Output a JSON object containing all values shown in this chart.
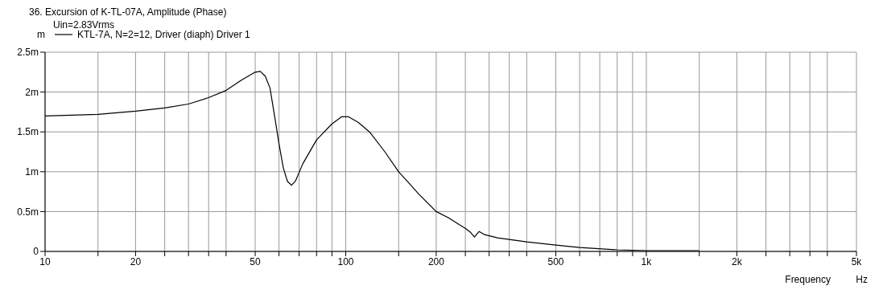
{
  "chart_data": {
    "type": "line",
    "title": "36. Excursion of K-TL-07A, Amplitude (Phase)",
    "subtitle": "Uin=2.83Vrms",
    "xlabel": "Frequency",
    "ylabel": "m",
    "annotations": [
      "Hz"
    ],
    "log": "x",
    "grid": true,
    "legend": "top left",
    "marker": "none",
    "line_style": "solid",
    "xlim": [
      10,
      5000
    ],
    "xticks": [
      10,
      {
        "value": 15,
        "label": null
      },
      20,
      {
        "value": 25,
        "label": null
      },
      {
        "value": 30,
        "label": null
      },
      {
        "value": 35,
        "label": null
      },
      {
        "value": 40,
        "label": null
      },
      50,
      {
        "value": 60,
        "label": null
      },
      {
        "value": 70,
        "label": null
      },
      {
        "value": 80,
        "label": null
      },
      {
        "value": 90,
        "label": null
      },
      100,
      {
        "value": 150,
        "label": null
      },
      200,
      {
        "value": 250,
        "label": null
      },
      {
        "value": 300,
        "label": null
      },
      {
        "value": 350,
        "label": null
      },
      {
        "value": 400,
        "label": null
      },
      500,
      {
        "value": 600,
        "label": null
      },
      {
        "value": 700,
        "label": null
      },
      {
        "value": 800,
        "label": null
      },
      {
        "value": 900,
        "label": null
      },
      {
        "value": 1000,
        "label": "1k"
      },
      {
        "value": 1500,
        "label": null
      },
      {
        "value": 2000,
        "label": "2k"
      },
      {
        "value": 2500,
        "label": null
      },
      {
        "value": 3000,
        "label": null
      },
      {
        "value": 3500,
        "label": null
      },
      {
        "value": 4000,
        "label": null
      },
      {
        "value": 5000,
        "label": "5k"
      }
    ],
    "ylim": [
      0,
      2.5
    ],
    "yticks": [
      0,
      {
        "value": 0.5,
        "label": "0.5m"
      },
      {
        "value": 1,
        "label": "1m"
      },
      {
        "value": 1.5,
        "label": "1.5m"
      },
      {
        "value": 2,
        "label": "2m"
      },
      {
        "value": 2.5,
        "label": "2.5m"
      }
    ],
    "series": [
      {
        "name": "KTL-7A, N=2=12, Driver (diaph) Driver 1",
        "color": "#000000",
        "x": [
          10,
          15,
          20,
          25,
          30,
          35,
          40,
          45,
          50,
          52,
          54,
          56,
          58,
          60,
          62,
          64,
          66,
          68,
          72,
          80,
          90,
          97,
          102,
          110,
          120,
          135,
          150,
          175,
          200,
          220,
          240,
          250,
          260,
          268,
          272,
          278,
          290,
          320,
          350,
          400,
          500,
          600,
          800,
          1000,
          1200,
          1500
        ],
        "values": [
          1.7,
          1.72,
          1.76,
          1.8,
          1.85,
          1.93,
          2.02,
          2.15,
          2.25,
          2.26,
          2.2,
          2.05,
          1.7,
          1.35,
          1.05,
          0.88,
          0.83,
          0.88,
          1.1,
          1.4,
          1.6,
          1.69,
          1.69,
          1.62,
          1.5,
          1.25,
          1,
          0.72,
          0.5,
          0.42,
          0.33,
          0.29,
          0.24,
          0.18,
          0.21,
          0.25,
          0.21,
          0.17,
          0.15,
          0.12,
          0.08,
          0.05,
          0.02,
          0.01,
          0.01,
          0.01
        ]
      }
    ]
  }
}
